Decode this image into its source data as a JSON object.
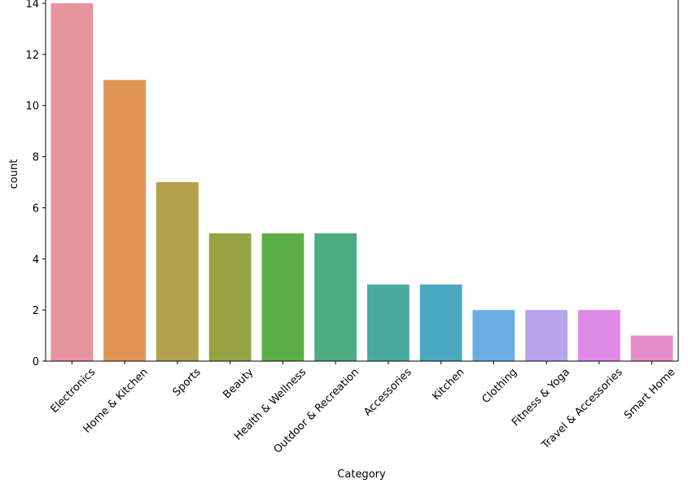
{
  "chart_data": {
    "type": "bar",
    "xlabel": "Category",
    "ylabel": "count",
    "ylim": [
      0,
      14
    ],
    "yticks": [
      0,
      2,
      4,
      6,
      8,
      10,
      12,
      14
    ],
    "categories": [
      "Electronics",
      "Home & Kitchen",
      "Sports",
      "Beauty",
      "Health & Wellness",
      "Outdoor & Recreation",
      "Accessories",
      "Kitchen",
      "Clothing",
      "Fitness & Yoga",
      "Travel & Accessories",
      "Smart Home"
    ],
    "values": [
      14,
      11,
      7,
      5,
      5,
      5,
      3,
      3,
      2,
      2,
      2,
      1
    ],
    "colors": [
      "#e8949f",
      "#e09455",
      "#b3a04a",
      "#96a444",
      "#5caf48",
      "#4aae80",
      "#4bab9f",
      "#4aa9c0",
      "#6aaee3",
      "#b6a3ea",
      "#e08ae8",
      "#e68cc9"
    ],
    "grid": false,
    "legend": "none"
  }
}
